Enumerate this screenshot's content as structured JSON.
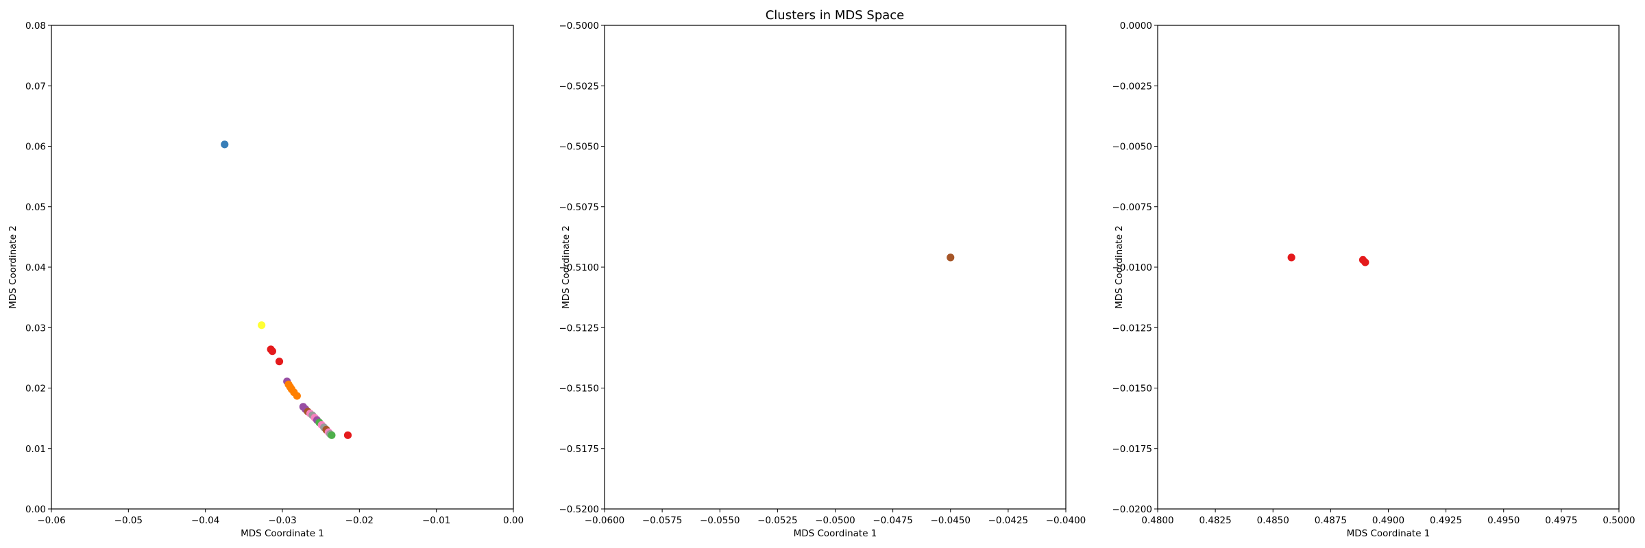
{
  "figure": {
    "title": "Clusters in MDS Space"
  },
  "chart_data": [
    {
      "type": "scatter",
      "xlabel": "MDS Coordinate 1",
      "ylabel": "MDS Coordinate 2",
      "xlim": [
        -0.06,
        0.0
      ],
      "ylim": [
        0.0,
        0.08
      ],
      "xticks": [
        -0.06,
        -0.05,
        -0.04,
        -0.03,
        -0.02,
        -0.01,
        0.0
      ],
      "xtick_labels": [
        "−0.06",
        "−0.05",
        "−0.04",
        "−0.03",
        "−0.02",
        "−0.01",
        "0.00"
      ],
      "yticks": [
        0.0,
        0.01,
        0.02,
        0.03,
        0.04,
        0.05,
        0.06,
        0.07,
        0.08
      ],
      "ytick_labels": [
        "0.00",
        "0.01",
        "0.02",
        "0.03",
        "0.04",
        "0.05",
        "0.06",
        "0.07",
        "0.08"
      ],
      "grid": false,
      "points": [
        {
          "x": -0.0375,
          "y": 0.0603,
          "color": "#377eb8"
        },
        {
          "x": -0.0327,
          "y": 0.0304,
          "color": "#ffff33"
        },
        {
          "x": -0.0315,
          "y": 0.0264,
          "color": "#e41a1c"
        },
        {
          "x": -0.0313,
          "y": 0.0261,
          "color": "#e41a1c"
        },
        {
          "x": -0.0304,
          "y": 0.0244,
          "color": "#e41a1c"
        },
        {
          "x": -0.0294,
          "y": 0.0211,
          "color": "#984ea3"
        },
        {
          "x": -0.0292,
          "y": 0.0206,
          "color": "#ff7f00"
        },
        {
          "x": -0.029,
          "y": 0.0202,
          "color": "#ff7f00"
        },
        {
          "x": -0.0288,
          "y": 0.0198,
          "color": "#ff7f00"
        },
        {
          "x": -0.0285,
          "y": 0.0193,
          "color": "#ff7f00"
        },
        {
          "x": -0.0281,
          "y": 0.0187,
          "color": "#ff7f00"
        },
        {
          "x": -0.0273,
          "y": 0.0169,
          "color": "#984ea3"
        },
        {
          "x": -0.027,
          "y": 0.0165,
          "color": "#984ea3"
        },
        {
          "x": -0.0267,
          "y": 0.0161,
          "color": "#a65628"
        },
        {
          "x": -0.0264,
          "y": 0.0158,
          "color": "#f781bf"
        },
        {
          "x": -0.0261,
          "y": 0.0155,
          "color": "#999999"
        },
        {
          "x": -0.0258,
          "y": 0.0151,
          "color": "#f781bf"
        },
        {
          "x": -0.0255,
          "y": 0.0147,
          "color": "#984ea3"
        },
        {
          "x": -0.0252,
          "y": 0.0143,
          "color": "#4daf4a"
        },
        {
          "x": -0.0249,
          "y": 0.0139,
          "color": "#f781bf"
        },
        {
          "x": -0.0246,
          "y": 0.0135,
          "color": "#999999"
        },
        {
          "x": -0.0243,
          "y": 0.0131,
          "color": "#a65628"
        },
        {
          "x": -0.024,
          "y": 0.0127,
          "color": "#f781bf"
        },
        {
          "x": -0.0238,
          "y": 0.0124,
          "color": "#999999"
        },
        {
          "x": -0.0236,
          "y": 0.0122,
          "color": "#4daf4a"
        },
        {
          "x": -0.0215,
          "y": 0.0122,
          "color": "#e41a1c"
        }
      ]
    },
    {
      "type": "scatter",
      "xlabel": "MDS Coordinate 1",
      "ylabel": "MDS Coordinate 2",
      "xlim": [
        -0.06,
        -0.04
      ],
      "ylim": [
        -0.52,
        -0.5
      ],
      "xticks": [
        -0.06,
        -0.0575,
        -0.055,
        -0.0525,
        -0.05,
        -0.0475,
        -0.045,
        -0.0425,
        -0.04
      ],
      "xtick_labels": [
        "−0.0600",
        "−0.0575",
        "−0.0550",
        "−0.0525",
        "−0.0500",
        "−0.0475",
        "−0.0450",
        "−0.0425",
        "−0.0400"
      ],
      "yticks": [
        -0.52,
        -0.5175,
        -0.515,
        -0.5125,
        -0.51,
        -0.5075,
        -0.505,
        -0.5025,
        -0.5
      ],
      "ytick_labels": [
        "−0.5200",
        "−0.5175",
        "−0.5150",
        "−0.5125",
        "−0.5100",
        "−0.5075",
        "−0.5050",
        "−0.5025",
        "−0.5000"
      ],
      "grid": false,
      "points": [
        {
          "x": -0.045,
          "y": -0.5096,
          "color": "#a65628"
        }
      ]
    },
    {
      "type": "scatter",
      "xlabel": "MDS Coordinate 1",
      "ylabel": "MDS Coordinate 2",
      "xlim": [
        0.48,
        0.5
      ],
      "ylim": [
        -0.02,
        0.0
      ],
      "xticks": [
        0.48,
        0.4825,
        0.485,
        0.4875,
        0.49,
        0.4925,
        0.495,
        0.4975,
        0.5
      ],
      "xtick_labels": [
        "0.4800",
        "0.4825",
        "0.4850",
        "0.4875",
        "0.4900",
        "0.4925",
        "0.4950",
        "0.4975",
        "0.5000"
      ],
      "yticks": [
        -0.02,
        -0.0175,
        -0.015,
        -0.0125,
        -0.01,
        -0.0075,
        -0.005,
        -0.0025,
        0.0
      ],
      "ytick_labels": [
        "−0.0200",
        "−0.0175",
        "−0.0150",
        "−0.0125",
        "−0.0100",
        "−0.0075",
        "−0.0050",
        "−0.0025",
        "0.0000"
      ],
      "grid": false,
      "points": [
        {
          "x": 0.4858,
          "y": -0.0096,
          "color": "#e41a1c"
        },
        {
          "x": 0.4889,
          "y": -0.0097,
          "color": "#e41a1c"
        },
        {
          "x": 0.489,
          "y": -0.0098,
          "color": "#e41a1c"
        }
      ]
    }
  ]
}
